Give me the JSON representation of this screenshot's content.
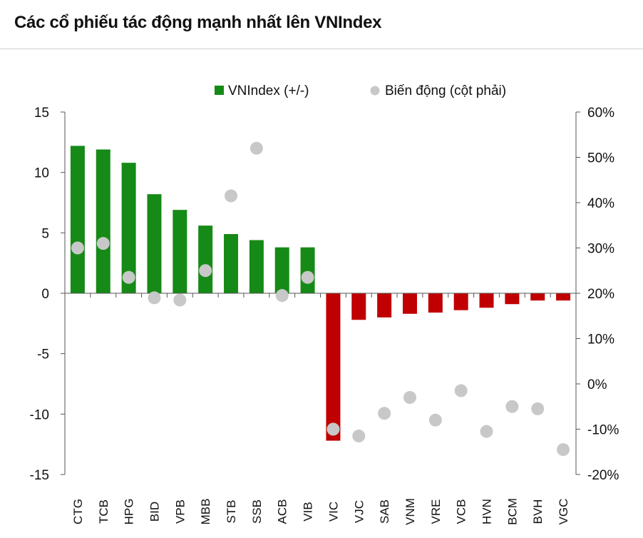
{
  "title": "Các cổ phiếu tác động mạnh nhất lên VNIndex",
  "colors": {
    "positive_bar": "#168a16",
    "negative_bar": "#c00000",
    "dot": "#c8c8c8",
    "axis": "#555555",
    "text": "#111111"
  },
  "chart_data": {
    "type": "bar",
    "title": "Các cổ phiếu tác động mạnh nhất lên VNIndex",
    "categories": [
      "CTG",
      "TCB",
      "HPG",
      "BID",
      "VPB",
      "MBB",
      "STB",
      "SSB",
      "ACB",
      "VIB",
      "VIC",
      "VJC",
      "SAB",
      "VNM",
      "VRE",
      "VCB",
      "HVN",
      "BCM",
      "BVH",
      "VGC"
    ],
    "series": [
      {
        "name": "VNIndex (+/-)",
        "axis": "left",
        "kind": "bar",
        "values": [
          12.2,
          11.9,
          10.8,
          8.2,
          6.9,
          5.6,
          4.9,
          4.4,
          3.8,
          3.8,
          -12.2,
          -2.2,
          -2.0,
          -1.7,
          -1.6,
          -1.4,
          -1.2,
          -0.9,
          -0.6,
          -0.6
        ]
      },
      {
        "name": "Biến động (cột phải)",
        "axis": "right",
        "kind": "scatter",
        "values": [
          30,
          31,
          23.5,
          19,
          18.5,
          25,
          41.5,
          52,
          19.5,
          23.5,
          -10,
          -11.5,
          -6.5,
          -3,
          -8,
          -1.5,
          -10.5,
          -5,
          -5.5,
          -14.5
        ]
      }
    ],
    "y_left": {
      "ylim": [
        -15,
        15
      ],
      "ticks": [
        "15",
        "10",
        "5",
        "0",
        "-5",
        "-10",
        "-15"
      ]
    },
    "y_right": {
      "ylim": [
        -20,
        60
      ],
      "ticks": [
        "60%",
        "50%",
        "40%",
        "30%",
        "20%",
        "10%",
        "0%",
        "-10%",
        "-20%"
      ]
    },
    "legend": [
      "VNIndex (+/-)",
      "Biến động (cột phải)"
    ],
    "legend_position": "top",
    "grid": false
  }
}
